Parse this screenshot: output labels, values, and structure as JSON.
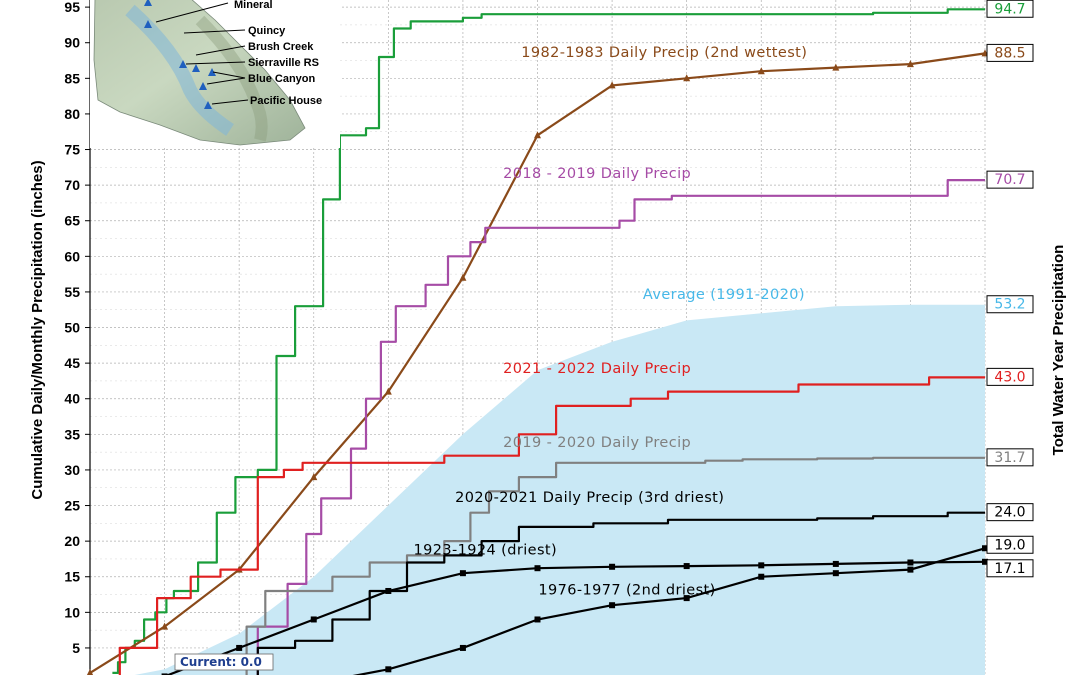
{
  "chart_data": {
    "type": "line",
    "ylabel": "Cumulative Daily/Monthly Precipitation (inches)",
    "ylabel_right": "Total Water Year Precipitation",
    "yticks": [
      5,
      10,
      15,
      20,
      25,
      30,
      35,
      40,
      45,
      50,
      55,
      60,
      65,
      70,
      75,
      80,
      85,
      90,
      95
    ],
    "ylim": [
      1.2,
      96
    ],
    "xlim": [
      0,
      12
    ],
    "grid": true,
    "series": [
      {
        "name": "",
        "color": "#1a9e3a",
        "style": "daily",
        "end_label": "94.7",
        "x": [
          0.3,
          0.45,
          0.5,
          0.7,
          0.75,
          1.0,
          1.05,
          1.2,
          1.3,
          1.6,
          1.8,
          2.1,
          2.4,
          2.6,
          2.9,
          3.05,
          3.2,
          3.5,
          3.6,
          3.8,
          3.95,
          4.2,
          4.4,
          4.5,
          4.6,
          4.8,
          5.2,
          5.3,
          5.5,
          5.6,
          6.0,
          6.5,
          7.0,
          7.5,
          8.0,
          8.5,
          9.0,
          9.5,
          10.0,
          11.0,
          12.0
        ],
        "y": [
          1.5,
          3,
          5,
          6,
          9,
          10,
          12,
          13,
          13,
          17,
          24,
          29,
          30,
          46,
          53,
          53,
          68,
          77,
          77,
          78,
          88,
          92,
          93,
          93,
          93,
          93,
          93.5,
          94,
          94,
          94,
          94,
          94,
          94,
          94,
          94,
          94,
          94,
          94,
          94,
          94.2,
          94.7
        ]
      },
      {
        "name": "1982-1983 Daily Precip (2nd wettest)",
        "color": "#8a4a1a",
        "style": "monthly",
        "end_label": "88.5",
        "x": [
          0,
          1,
          2,
          3,
          4,
          5,
          6,
          7,
          8,
          9,
          10,
          11,
          12
        ],
        "y": [
          1.5,
          8,
          16,
          29,
          41,
          57,
          77,
          84,
          85,
          86,
          86.5,
          87,
          88.5
        ]
      },
      {
        "name": "2018 - 2019 Daily Precip",
        "color": "#a64ca6",
        "style": "daily",
        "end_label": "70.7",
        "x": [
          0,
          1.0,
          2.0,
          2.5,
          2.8,
          3.0,
          3.2,
          3.4,
          3.6,
          3.8,
          4.0,
          4.2,
          4.4,
          4.6,
          5.0,
          5.2,
          5.4,
          5.6,
          6.0,
          6.5,
          7.0,
          7.2,
          7.4,
          7.6,
          8.0,
          9.0,
          10,
          11,
          12
        ],
        "y": [
          0,
          0,
          0,
          8,
          14,
          21,
          26,
          26,
          33,
          40,
          48,
          53,
          53,
          56,
          60,
          62,
          64,
          64,
          64,
          64,
          64,
          65,
          68,
          68,
          68.5,
          68.5,
          68.5,
          68.5,
          70.7
        ]
      },
      {
        "name": "Average (1991-2020)",
        "color": "#6bbde8",
        "style": "area",
        "end_label": "53.2",
        "x": [
          0,
          1,
          2,
          3,
          4,
          5,
          6,
          7,
          8,
          9,
          10,
          11,
          12
        ],
        "y": [
          0,
          2,
          7,
          15,
          25,
          35,
          44,
          48,
          51,
          52,
          53,
          53.2,
          53.2
        ]
      },
      {
        "name": "2021 - 2022 Daily Precip",
        "color": "#e02020",
        "style": "daily",
        "end_label": "43.0",
        "x": [
          0,
          0.8,
          1.0,
          1.2,
          1.5,
          2.0,
          2.5,
          2.7,
          3.0,
          3.5,
          4.0,
          4.5,
          5.0,
          5.5,
          6.0,
          6.5,
          7.0,
          7.5,
          8.0,
          9.0,
          10,
          11,
          11.5,
          12
        ],
        "y": [
          0,
          5,
          12,
          12,
          15,
          16,
          29,
          30,
          31,
          31,
          31,
          31,
          32,
          32,
          35,
          39,
          39,
          40,
          41,
          41,
          42,
          42,
          43,
          43
        ]
      },
      {
        "name": "2019 - 2020 Daily Precip",
        "color": "#808080",
        "style": "daily",
        "end_label": "31.7",
        "x": [
          0,
          1.5,
          2.0,
          2.2,
          2.5,
          3.0,
          3.5,
          4.0,
          4.5,
          5.0,
          5.2,
          5.5,
          6.0,
          6.5,
          7.0,
          7.5,
          8.0,
          8.5,
          9.0,
          9.5,
          10,
          11,
          12
        ],
        "y": [
          0,
          0,
          0,
          8,
          13,
          13,
          15,
          17,
          18,
          20,
          24,
          27,
          29,
          31,
          31,
          31,
          31,
          31.3,
          31.5,
          31.5,
          31.6,
          31.7,
          31.7
        ]
      },
      {
        "name": "2020-2021 Daily Precip (3rd driest)",
        "color": "#000000",
        "style": "daily",
        "end_label": "24.0",
        "x": [
          0,
          1.0,
          1.5,
          2.0,
          2.5,
          3.0,
          3.5,
          4.0,
          4.5,
          5.0,
          5.5,
          6.0,
          6.5,
          7.0,
          7.5,
          8.0,
          8.5,
          9.0,
          9.5,
          10,
          11,
          12
        ],
        "y": [
          0,
          0,
          0,
          1,
          5,
          6,
          9,
          13,
          17,
          18,
          20,
          22,
          22,
          22.5,
          22.5,
          23,
          23,
          23,
          23,
          23.2,
          23.5,
          24
        ]
      },
      {
        "name": "1923-1924 (driest)",
        "color": "#000000",
        "style": "monthly",
        "end_label": "17.1",
        "x": [
          0,
          1,
          2,
          3,
          4,
          5,
          6,
          7,
          8,
          9,
          10,
          11,
          12
        ],
        "y": [
          0,
          1,
          5,
          9,
          13,
          15.5,
          16.2,
          16.4,
          16.5,
          16.6,
          16.8,
          17,
          17.1
        ]
      },
      {
        "name": "1976-1977 (2nd driest)",
        "color": "#000000",
        "style": "monthly",
        "end_label": "19.0",
        "x": [
          0,
          1,
          2,
          3,
          4,
          5,
          6,
          7,
          8,
          9,
          10,
          11,
          12
        ],
        "y": [
          0,
          0,
          0,
          0,
          2,
          5,
          9,
          11,
          12,
          15,
          15.5,
          16,
          19
        ]
      }
    ],
    "annotations": [
      {
        "text": "1982-1983 Daily Precip (2nd wettest)",
        "color": "#8a4a1a",
        "x": 7.7,
        "y": 88
      },
      {
        "text": "2018 - 2019 Daily Precip",
        "color": "#a64ca6",
        "x": 6.8,
        "y": 71
      },
      {
        "text": "Average (1991-2020)",
        "color": "#47b8e8",
        "x": 8.5,
        "y": 54
      },
      {
        "text": "2021 - 2022 Daily Precip",
        "color": "#e02020",
        "x": 6.8,
        "y": 43.6
      },
      {
        "text": "2019 - 2020 Daily Precip",
        "color": "#808080",
        "x": 6.8,
        "y": 33.2
      },
      {
        "text": "2020-2021 Daily Precip (3rd driest)",
        "color": "#000000",
        "x": 6.7,
        "y": 25.5
      },
      {
        "text": "1923-1924 (driest)",
        "color": "#000000",
        "x": 5.3,
        "y": 18.1
      },
      {
        "text": "1976-1977 (2nd driest)",
        "color": "#000000",
        "x": 7.2,
        "y": 12.5
      }
    ],
    "current_label": "Current: 0.0"
  },
  "map_inset": {
    "stations": [
      "Mineral",
      "Quincy",
      "Brush Creek",
      "Sierraville RS",
      "Blue Canyon",
      "Pacific House"
    ]
  }
}
